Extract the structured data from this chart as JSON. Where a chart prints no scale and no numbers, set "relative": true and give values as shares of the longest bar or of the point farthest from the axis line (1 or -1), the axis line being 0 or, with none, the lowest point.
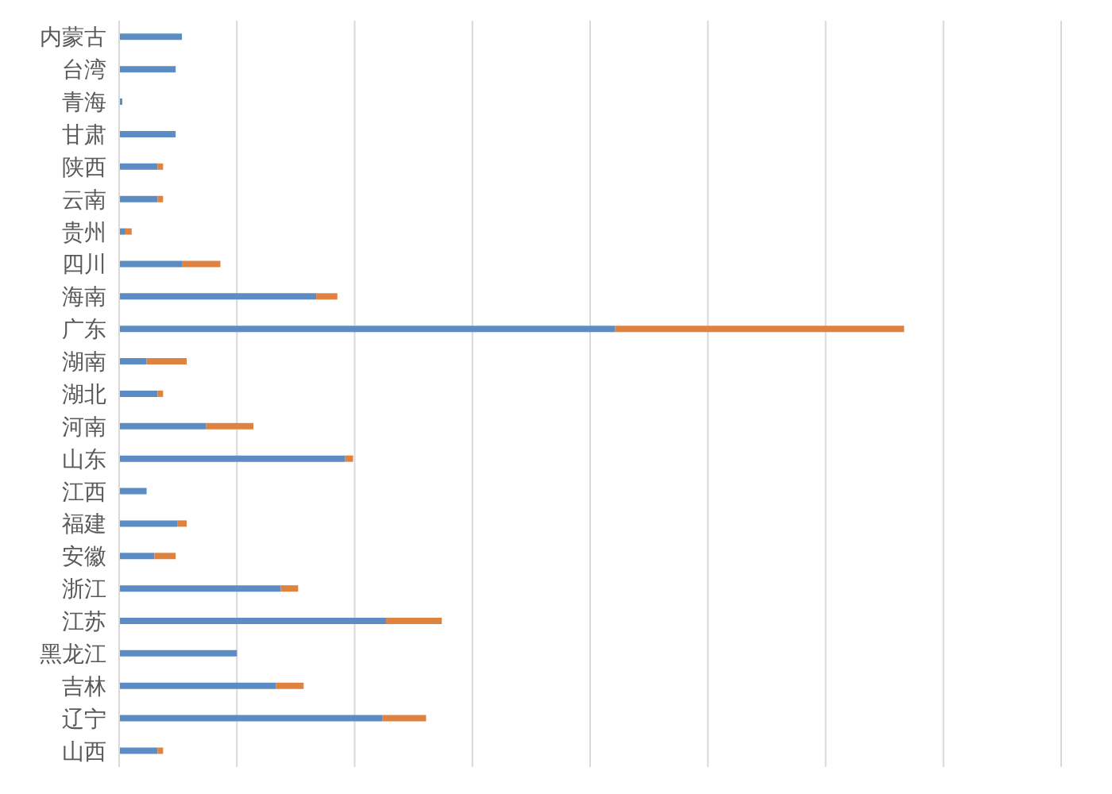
{
  "chart_data": {
    "type": "bar",
    "orientation": "horizontal",
    "stacked": true,
    "relative": true,
    "grid": "x",
    "categories": [
      "内蒙古",
      "台湾",
      "青海",
      "甘肃",
      "陕西",
      "云南",
      "贵州",
      "四川",
      "海南",
      "广东",
      "湖南",
      "湖北",
      "河南",
      "山东",
      "江西",
      "福建",
      "安徽",
      "浙江",
      "江苏",
      "黑龙江",
      "吉林",
      "辽宁",
      "山西"
    ],
    "series": [
      {
        "color": "#5b8dc4",
        "values": [
          0.08,
          0.072,
          0.004,
          0.072,
          0.049,
          0.049,
          0.008,
          0.08,
          0.251,
          0.632,
          0.035,
          0.049,
          0.111,
          0.288,
          0.035,
          0.074,
          0.045,
          0.206,
          0.34,
          0.15,
          0.2,
          0.335,
          0.049
        ]
      },
      {
        "color": "#e0823f",
        "values": [
          0,
          0,
          0,
          0,
          0.007,
          0.007,
          0.008,
          0.049,
          0.027,
          0.368,
          0.051,
          0.007,
          0.06,
          0.01,
          0,
          0.012,
          0.027,
          0.022,
          0.071,
          0,
          0.035,
          0.056,
          0.007
        ]
      }
    ]
  }
}
